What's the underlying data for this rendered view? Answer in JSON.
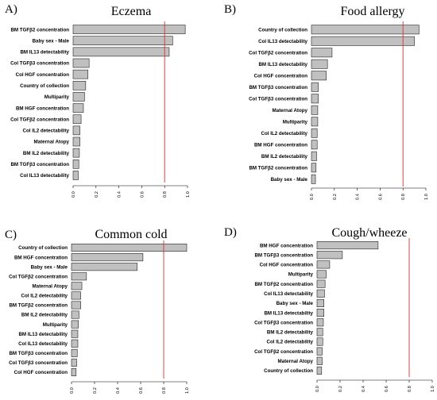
{
  "chart_data": [
    {
      "type": "bar",
      "orientation": "horizontal",
      "panel": "A)",
      "title": "Eczema",
      "categories": [
        "BM TGFβ2 concentration",
        "Baby sex - Male",
        "BM IL13 detectability",
        "Col TGFβ3 concentration",
        "Col HGF concentration",
        "Country of collection",
        "Multiparity",
        "BM HGF concentration",
        "Col TGFβ2 concentration",
        "Col IL2 detectability",
        "Maternal Atopy",
        "BM IL2 detectability",
        "BM TGFβ3 concentration",
        "Col IL13 detectability"
      ],
      "values": [
        0.98,
        0.87,
        0.84,
        0.14,
        0.13,
        0.11,
        0.1,
        0.09,
        0.07,
        0.06,
        0.06,
        0.055,
        0.05,
        0.045
      ],
      "xlim": [
        0,
        1
      ],
      "xticks": [
        "0.0",
        "0.2",
        "0.4",
        "0.6",
        "0.8",
        "1.0"
      ],
      "reference_line": 0.8,
      "reference_color": "#e03030"
    },
    {
      "type": "bar",
      "orientation": "horizontal",
      "panel": "B)",
      "title": "Food allergy",
      "categories": [
        "Country of collection",
        "Col IL13 detectability",
        "Col TGFβ2 concentration",
        "BM IL13 detectability",
        "Col HGF concentration",
        "BM TGFβ3 concentration",
        "Col TGFβ3 concentration",
        "Maternal Atopy",
        "Multiparity",
        "Col IL2 detectability",
        "BM HGF concentration",
        "BM IL2 detectability",
        "BM TGFβ2 concentration",
        "Baby sex - Male"
      ],
      "values": [
        0.94,
        0.9,
        0.18,
        0.14,
        0.13,
        0.06,
        0.06,
        0.055,
        0.055,
        0.05,
        0.05,
        0.045,
        0.04,
        0.035
      ],
      "xlim": [
        0,
        1
      ],
      "xticks": [
        "0.0",
        "0.2",
        "0.4",
        "0.6",
        "0.8",
        "1.0"
      ],
      "reference_line": 0.8,
      "reference_color": "#e03030"
    },
    {
      "type": "bar",
      "orientation": "horizontal",
      "panel": "C)",
      "title": "Common cold",
      "categories": [
        "Country of collection",
        "BM HGF concentration",
        "Baby sex - Male",
        "Col TGFβ2 concentration",
        "Maternal Atopy",
        "Col IL2 detectability",
        "BM TGFβ2 concentration",
        "BM IL2 detectability",
        "Multiparity",
        "BM IL13 detectability",
        "Col IL13 detectability",
        "BM TGFβ3 concentration",
        "Col TGFβ3 concentration",
        "Col HGF concentration"
      ],
      "values": [
        1.0,
        0.62,
        0.57,
        0.13,
        0.09,
        0.08,
        0.08,
        0.065,
        0.06,
        0.055,
        0.055,
        0.05,
        0.045,
        0.04
      ],
      "xlim": [
        0,
        1
      ],
      "xticks": [
        "0.0",
        "0.2",
        "0.4",
        "0.6",
        "0.8",
        "1.0"
      ],
      "reference_line": 0.8,
      "reference_color": "#e03030"
    },
    {
      "type": "bar",
      "orientation": "horizontal",
      "panel": "D)",
      "title": "Cough/wheeze",
      "categories": [
        "BM HGF concentration",
        "BM TGFβ3 concentration",
        "Col HGF concentration",
        "Multiparity",
        "BM TGFβ2 concentration",
        "Col IL13 detectability",
        "Baby sex - Male",
        "BM IL13 detectability",
        "Col TGFβ3 concentration",
        "BM IL2 detectability",
        "Col IL2 detectability",
        "Col TGFβ2 concentration",
        "Maternal Atopy",
        "Country of collection"
      ],
      "values": [
        0.53,
        0.22,
        0.11,
        0.08,
        0.07,
        0.065,
        0.06,
        0.06,
        0.055,
        0.05,
        0.05,
        0.045,
        0.045,
        0.04
      ],
      "xlim": [
        0,
        1
      ],
      "xticks": [
        "0.0",
        "0.2",
        "0.4",
        "0.6",
        "0.8",
        "1.0"
      ],
      "reference_line": 0.8,
      "reference_color": "#e03030"
    }
  ]
}
